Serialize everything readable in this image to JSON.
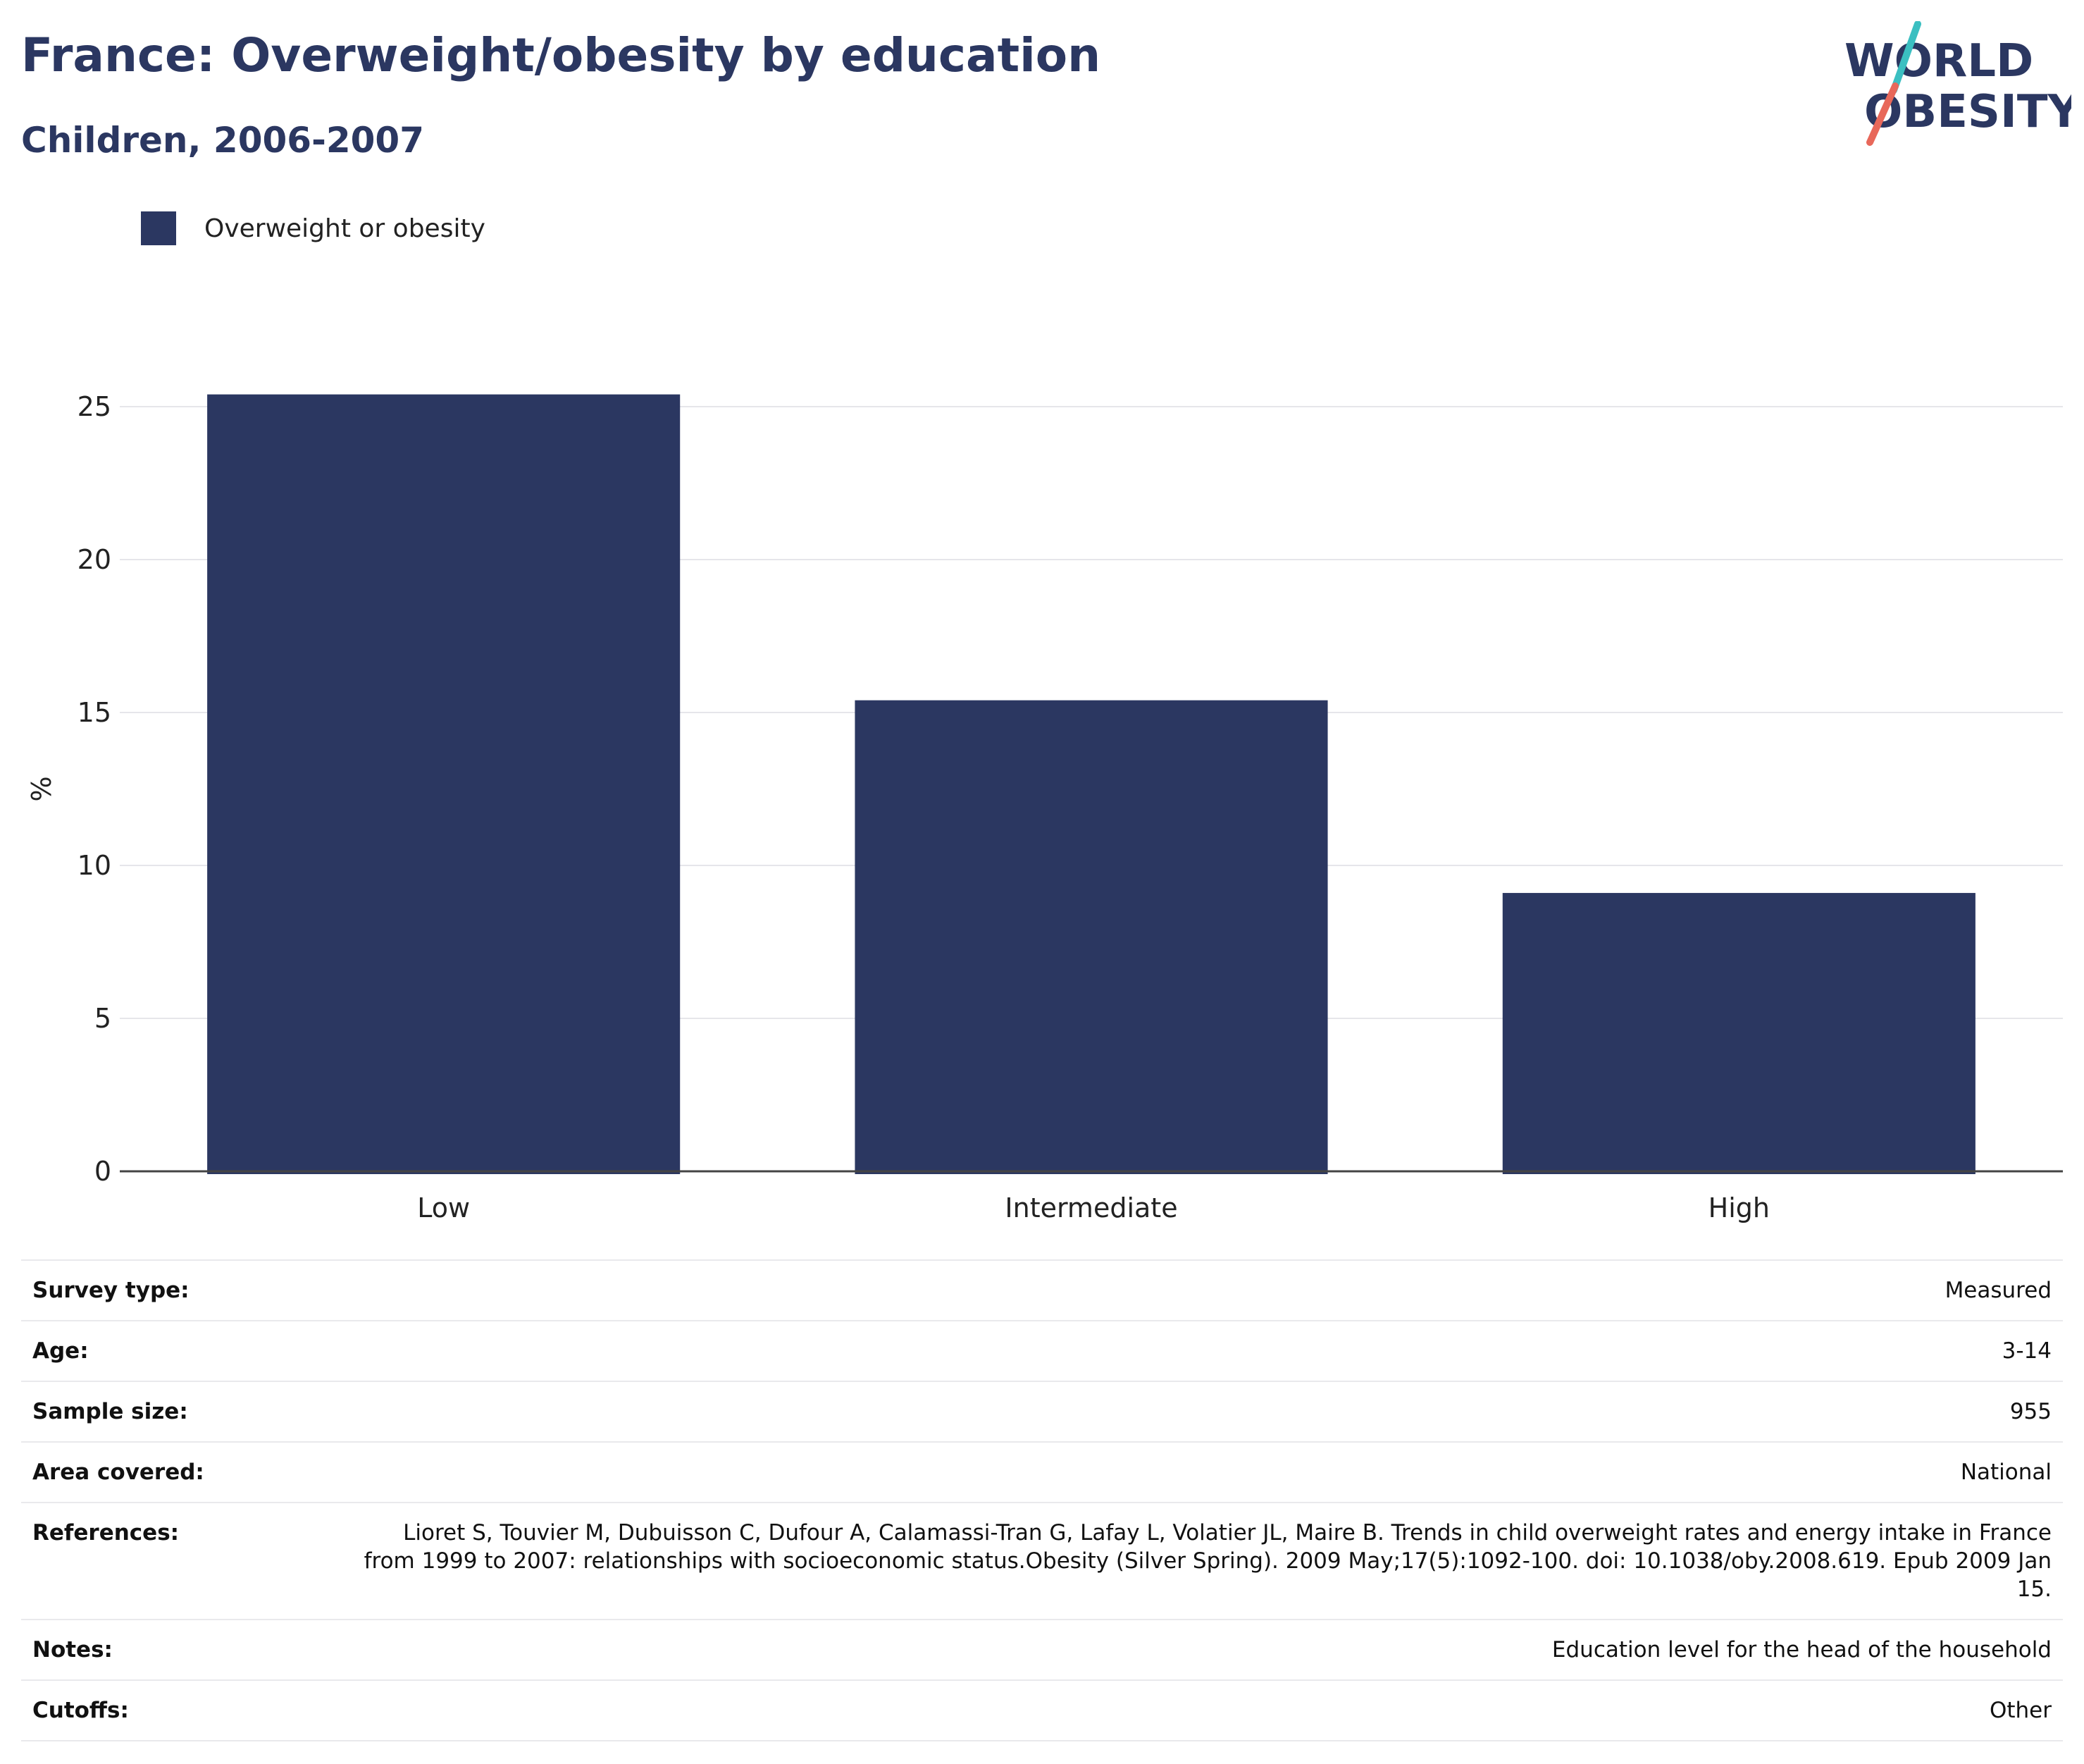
{
  "header": {
    "title": "France: Overweight/obesity by education",
    "subtitle": "Children, 2006-2007"
  },
  "logo": {
    "icon": "world-obesity-logo",
    "line1": "WORLD",
    "line2": "OBESITY",
    "colors": {
      "text": "#2b3761",
      "slash_top": "#3bbfc1",
      "slash_bottom": "#e8685a"
    }
  },
  "colors": {
    "bar": "#2b3761",
    "grid": "#e6e6ea",
    "axis": "#444444"
  },
  "chart_data": {
    "type": "bar",
    "categories": [
      "Low",
      "Intermediate",
      "High"
    ],
    "series": [
      {
        "name": "Overweight or obesity",
        "values": [
          25.4,
          15.4,
          9.1
        ]
      }
    ],
    "title": "France: Overweight/obesity by education",
    "subtitle": "Children, 2006-2007",
    "xlabel": "",
    "ylabel": "%",
    "ylim": [
      0,
      25.4
    ],
    "yticks": [
      0,
      5,
      10,
      15,
      20,
      25
    ],
    "grid": true,
    "legend": "top-left"
  },
  "info": [
    {
      "key": "Survey type:",
      "value": "Measured"
    },
    {
      "key": "Age:",
      "value": "3-14"
    },
    {
      "key": "Sample size:",
      "value": "955"
    },
    {
      "key": "Area covered:",
      "value": "National"
    },
    {
      "key": "References:",
      "value": "Lioret S, Touvier M, Dubuisson C, Dufour A, Calamassi-Tran G, Lafay L, Volatier JL, Maire B. Trends in child overweight rates and energy intake in France from 1999 to 2007: relationships with socioeconomic status.Obesity (Silver Spring). 2009 May;17(5):1092-100. doi: 10.1038/oby.2008.619. Epub 2009 Jan 15."
    },
    {
      "key": "Notes:",
      "value": "Education level for the head of the household"
    },
    {
      "key": "Cutoffs:",
      "value": "Other"
    }
  ]
}
